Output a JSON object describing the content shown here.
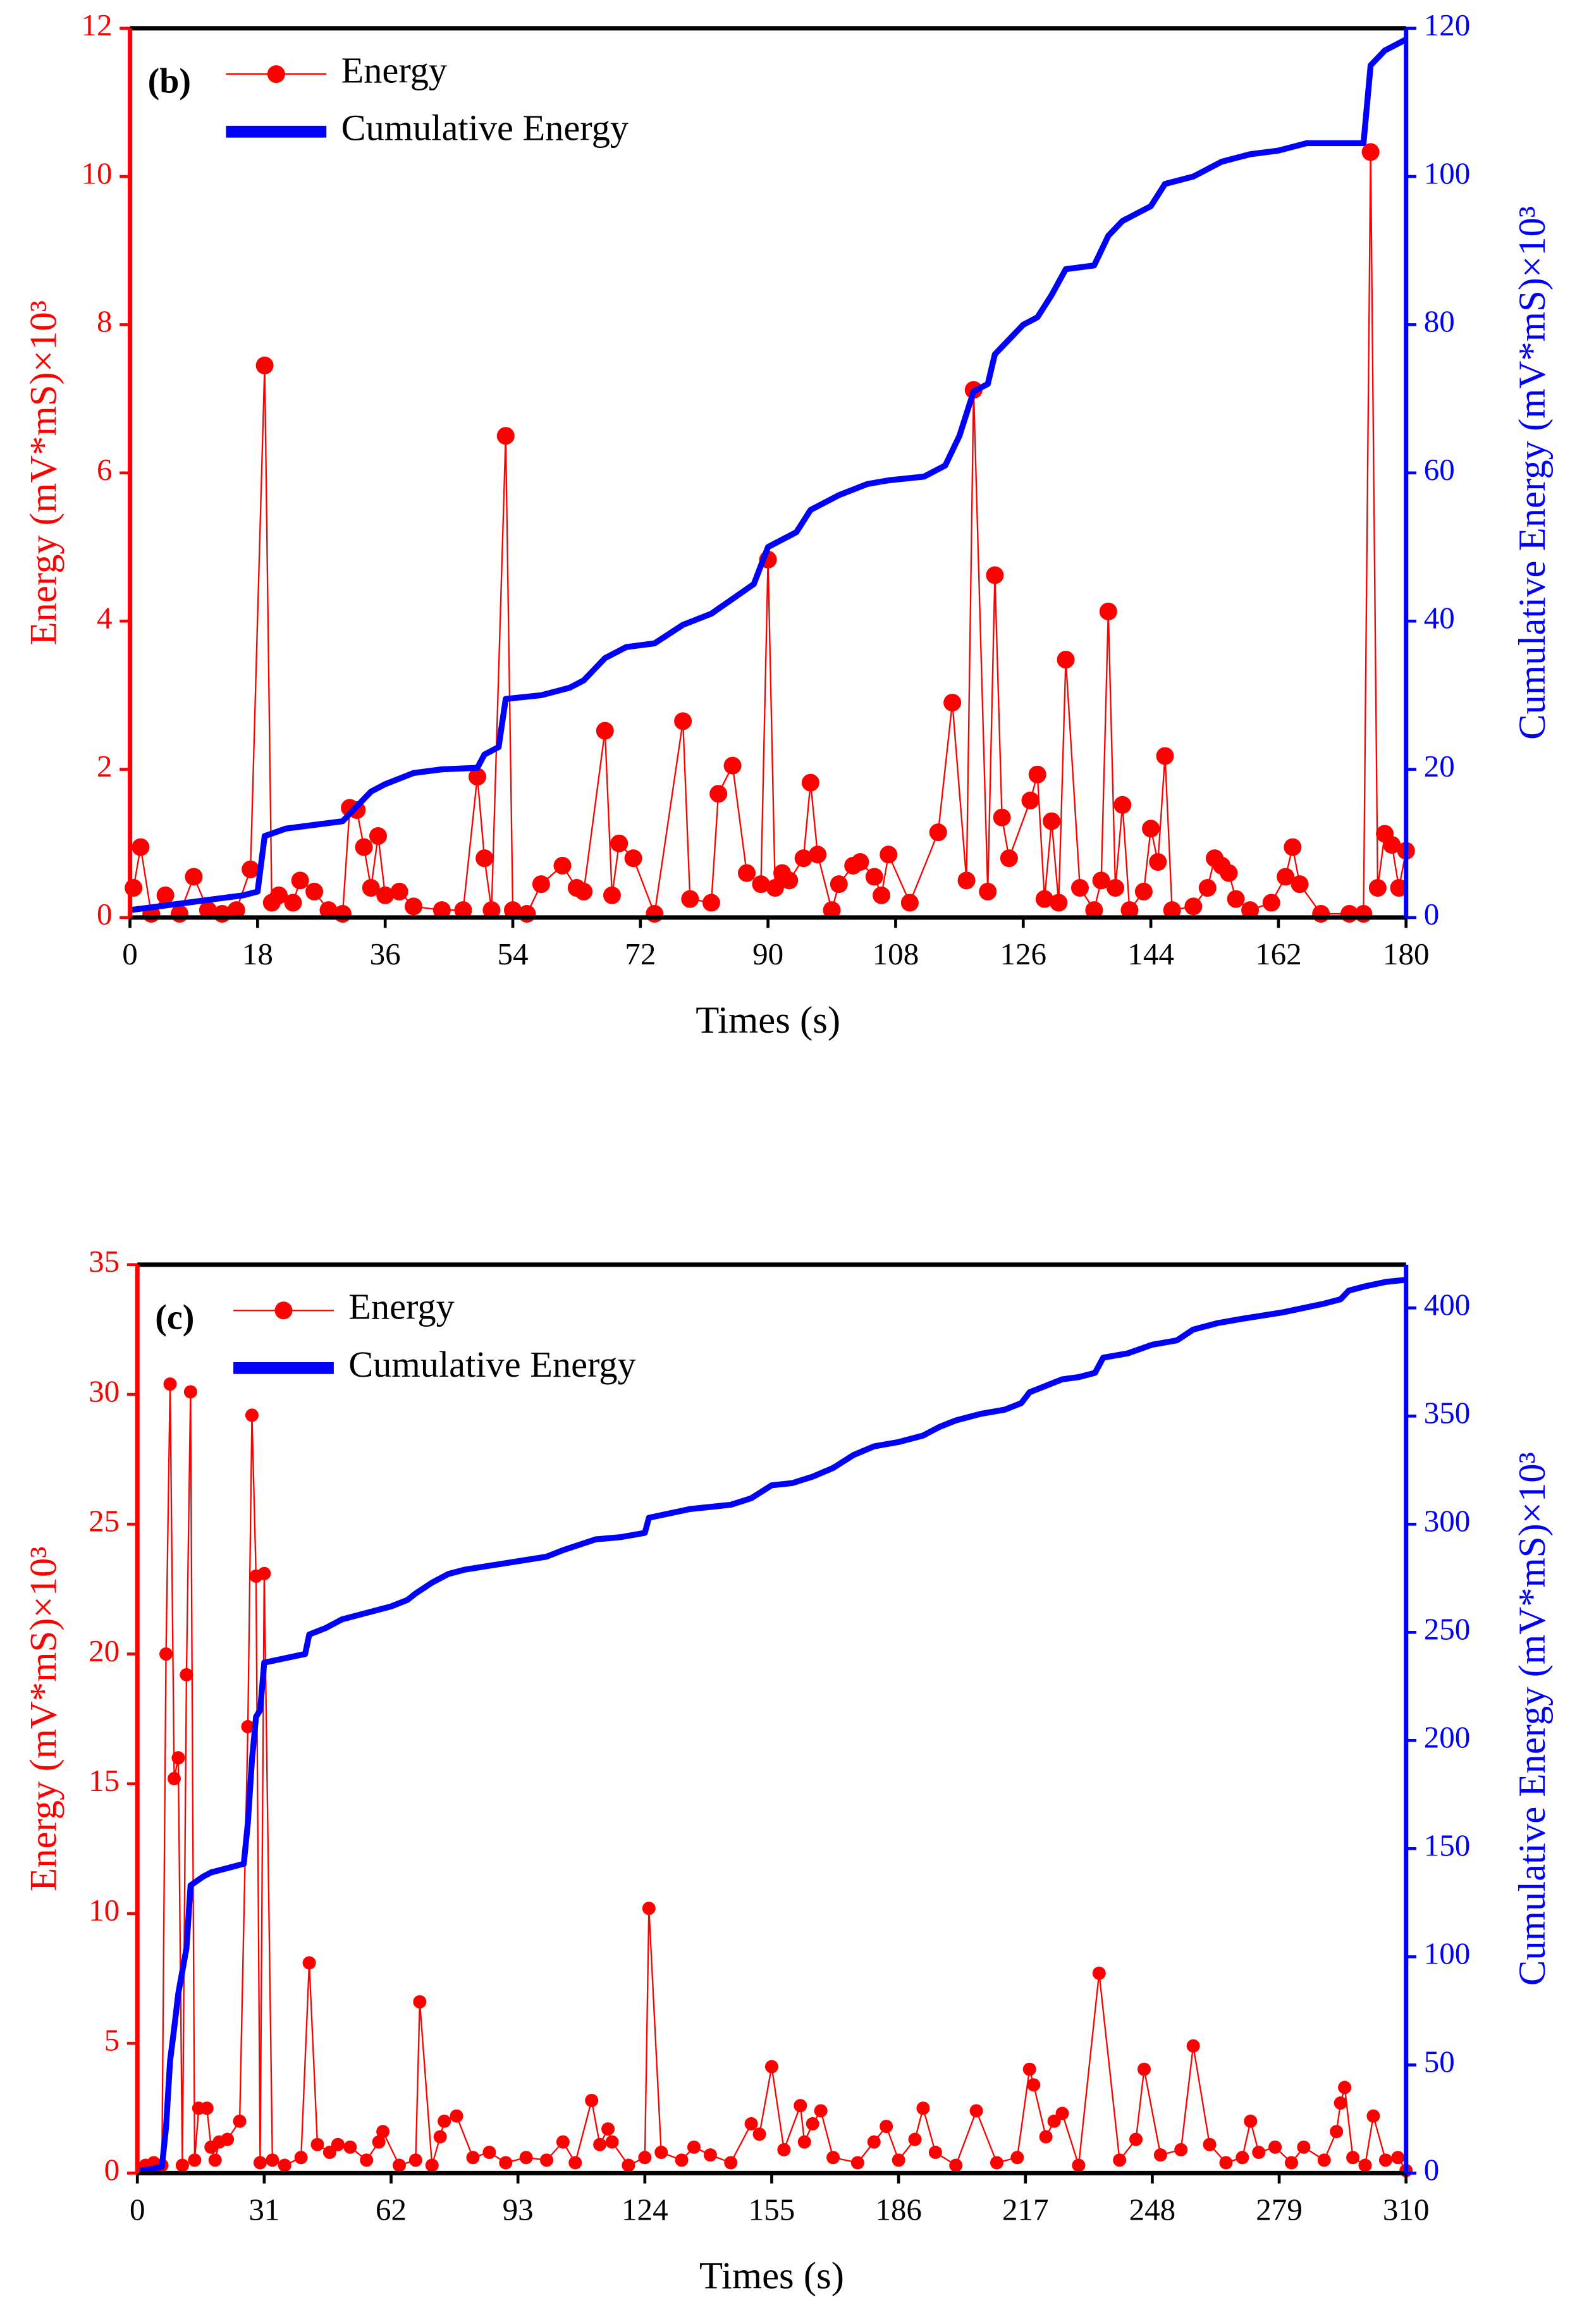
{
  "chart_data": [
    {
      "type": "line",
      "panel_label": "(b)",
      "xlabel": "Times (s)",
      "ylabel": "Energy (mV*mS)×10³",
      "y2label": "Cumulative Energy (mV*mS)×10³",
      "xlim": [
        0,
        180
      ],
      "xticks": [
        0,
        18,
        36,
        54,
        72,
        90,
        108,
        126,
        144,
        162,
        180
      ],
      "ylim": [
        0,
        12
      ],
      "yticks": [
        0,
        2,
        4,
        6,
        8,
        10,
        12
      ],
      "y2lim": [
        0,
        120
      ],
      "y2ticks": [
        0,
        20,
        40,
        60,
        80,
        100,
        120
      ],
      "legend": "upper left",
      "series": [
        {
          "name": "Energy",
          "color": "#ff0000",
          "marker": "circle",
          "axis": "y",
          "x": [
            0.5,
            1.5,
            3,
            5,
            7,
            9,
            11,
            13,
            15,
            17,
            19,
            20,
            21,
            23,
            24,
            26,
            28,
            30,
            31,
            32,
            33,
            34,
            35,
            36,
            38,
            40,
            44,
            47,
            49,
            50,
            51,
            53,
            54,
            56,
            58,
            61,
            63,
            64,
            67,
            68,
            69,
            71,
            74,
            78,
            79,
            82,
            83,
            85,
            87,
            89,
            90,
            91,
            92,
            93,
            95,
            96,
            97,
            99,
            100,
            102,
            103,
            105,
            106,
            107,
            110,
            114,
            116,
            118,
            119,
            121,
            122,
            123,
            124,
            127,
            128,
            129,
            130,
            131,
            132,
            134,
            136,
            137,
            138,
            139,
            140,
            141,
            143,
            144,
            145,
            146,
            147,
            150,
            152,
            153,
            154,
            155,
            156,
            158,
            161,
            163,
            164,
            165,
            168,
            172,
            174,
            175,
            176,
            177,
            178,
            179,
            180
          ],
          "values": [
            0.4,
            0.95,
            0.05,
            0.3,
            0.05,
            0.55,
            0.1,
            0.05,
            0.1,
            0.65,
            7.45,
            0.2,
            0.3,
            0.2,
            0.5,
            0.35,
            0.1,
            0.05,
            1.48,
            1.45,
            0.95,
            0.4,
            1.1,
            0.3,
            0.35,
            0.15,
            0.1,
            0.1,
            1.9,
            0.8,
            0.1,
            6.5,
            0.1,
            0.05,
            0.45,
            0.7,
            0.4,
            0.35,
            2.52,
            0.3,
            1.0,
            0.8,
            0.05,
            2.65,
            0.25,
            0.2,
            1.67,
            2.05,
            0.6,
            0.45,
            4.83,
            0.4,
            0.6,
            0.5,
            0.8,
            1.82,
            0.85,
            0.1,
            0.45,
            0.7,
            0.75,
            0.55,
            0.3,
            0.85,
            0.2,
            1.15,
            2.9,
            0.5,
            7.12,
            0.35,
            4.62,
            1.35,
            0.8,
            1.58,
            1.93,
            0.25,
            1.3,
            0.2,
            3.48,
            0.4,
            0.1,
            0.5,
            4.13,
            0.4,
            1.52,
            0.1,
            0.35,
            1.2,
            0.75,
            2.18,
            0.1,
            0.15,
            0.4,
            0.8,
            0.7,
            0.6,
            0.25,
            0.1,
            0.2,
            0.55,
            0.95,
            0.45,
            0.05,
            0.05,
            0.05,
            10.33,
            0.4,
            1.13,
            0.98,
            0.4,
            0.9
          ]
        },
        {
          "name": "Cumulative Energy",
          "color": "#0000ff",
          "axis": "y2",
          "x": [
            0,
            4,
            8,
            12,
            16,
            18,
            19,
            22,
            26,
            30,
            32,
            34,
            36,
            40,
            44,
            49,
            50,
            52,
            53,
            58,
            62,
            64,
            67,
            70,
            74,
            78,
            82,
            85,
            88,
            90,
            94,
            96,
            100,
            104,
            107,
            112,
            115,
            117,
            119,
            121,
            122,
            124,
            126,
            128,
            130,
            132,
            136,
            138,
            140,
            144,
            146,
            150,
            154,
            158,
            162,
            166,
            174,
            175,
            177,
            180
          ],
          "values": [
            1,
            1.5,
            2,
            2.5,
            3,
            3.5,
            11,
            12,
            12.5,
            13,
            15,
            17,
            18,
            19.5,
            20,
            20.2,
            22,
            23,
            29.5,
            30,
            31,
            32,
            35,
            36.5,
            37,
            39.5,
            41,
            43,
            45,
            50,
            52,
            55,
            57,
            58.5,
            59,
            59.5,
            61,
            65,
            71,
            72,
            76,
            78,
            80,
            81,
            84,
            87.5,
            88,
            92,
            94,
            96,
            99,
            100,
            102,
            103,
            103.5,
            104.5,
            104.5,
            115,
            117,
            118.5
          ]
        }
      ]
    },
    {
      "type": "line",
      "panel_label": "(c)",
      "xlabel": "Times (s)",
      "ylabel": "Energy (mV*mS)×10³",
      "y2label": "Cumulative Energy (mV*mS)×10³",
      "xlim": [
        0,
        310
      ],
      "xticks": [
        0,
        31,
        62,
        93,
        124,
        155,
        186,
        217,
        248,
        279,
        310
      ],
      "ylim": [
        0,
        35
      ],
      "yticks": [
        0,
        5,
        10,
        15,
        20,
        25,
        30,
        35
      ],
      "y2lim": [
        0,
        420
      ],
      "y2ticks": [
        0,
        50,
        100,
        150,
        200,
        250,
        300,
        350,
        400
      ],
      "legend": "upper left",
      "series": [
        {
          "name": "Energy",
          "color": "#ff0000",
          "marker": "circle",
          "axis": "y",
          "x": [
            2,
            4,
            6,
            7,
            8,
            9,
            10,
            11,
            12,
            13,
            14,
            15,
            17,
            18,
            19,
            20,
            22,
            25,
            27,
            28,
            29,
            30,
            31,
            33,
            36,
            40,
            42,
            44,
            47,
            49,
            52,
            56,
            59,
            60,
            64,
            68,
            69,
            72,
            74,
            75,
            78,
            82,
            86,
            90,
            95,
            100,
            104,
            107,
            111,
            113,
            115,
            116,
            120,
            124,
            125,
            128,
            133,
            136,
            140,
            145,
            150,
            152,
            155,
            158,
            162,
            163,
            165,
            167,
            170,
            176,
            180,
            183,
            186,
            190,
            192,
            195,
            200,
            205,
            210,
            215,
            218,
            219,
            222,
            224,
            226,
            230,
            235,
            240,
            244,
            246,
            250,
            255,
            258,
            262,
            266,
            270,
            272,
            274,
            278,
            282,
            285,
            290,
            293,
            294,
            295,
            297,
            300,
            302,
            305,
            308,
            310
          ],
          "values": [
            0.3,
            0.4,
            0.3,
            20,
            30.4,
            15.2,
            16,
            0.3,
            19.2,
            30.1,
            0.5,
            2.5,
            2.5,
            1.0,
            0.5,
            1.2,
            1.3,
            2.0,
            17.2,
            29.2,
            23,
            0.4,
            23.1,
            0.5,
            0.3,
            0.6,
            8.1,
            1.1,
            0.8,
            1.1,
            1.0,
            0.5,
            1.2,
            1.6,
            0.3,
            0.5,
            6.6,
            0.3,
            1.4,
            2.0,
            2.2,
            0.6,
            0.8,
            0.4,
            0.6,
            0.5,
            1.2,
            0.4,
            2.8,
            1.1,
            1.7,
            1.2,
            0.3,
            0.6,
            10.2,
            0.8,
            0.5,
            1.0,
            0.7,
            0.4,
            1.9,
            1.5,
            4.1,
            0.9,
            2.6,
            1.2,
            1.9,
            2.4,
            0.6,
            0.4,
            1.2,
            1.8,
            0.5,
            1.3,
            2.5,
            0.8,
            0.3,
            2.4,
            0.4,
            0.6,
            4.0,
            3.4,
            1.4,
            2.0,
            2.3,
            0.3,
            7.7,
            0.5,
            1.3,
            4.0,
            0.7,
            0.9,
            4.9,
            1.1,
            0.4,
            0.6,
            2.0,
            0.8,
            1.0,
            0.4,
            1.0,
            0.5,
            1.6,
            2.7,
            3.3,
            0.6,
            0.3,
            2.2,
            0.5,
            0.6,
            0.1
          ]
        },
        {
          "name": "Cumulative Energy",
          "color": "#0000ff",
          "axis": "y2",
          "x": [
            0,
            4,
            6,
            7,
            8,
            9,
            10,
            12,
            13,
            16,
            18,
            22,
            26,
            27,
            28,
            29,
            30,
            31,
            36,
            41,
            42,
            46,
            50,
            56,
            62,
            66,
            68,
            72,
            76,
            80,
            90,
            100,
            104,
            112,
            118,
            124,
            125,
            135,
            145,
            150,
            155,
            160,
            165,
            170,
            175,
            180,
            186,
            192,
            196,
            200,
            206,
            212,
            216,
            218,
            222,
            226,
            230,
            234,
            236,
            242,
            248,
            254,
            258,
            264,
            270,
            280,
            290,
            294,
            296,
            300,
            305,
            310
          ],
          "values": [
            1,
            2,
            3,
            21,
            52,
            67,
            83,
            104,
            133,
            137,
            139,
            141,
            143,
            162,
            191,
            211,
            214,
            236,
            238,
            240,
            249,
            252,
            256,
            259,
            262,
            265,
            268,
            273,
            277,
            279,
            282,
            285,
            288,
            293,
            294,
            296,
            303,
            307,
            309,
            312,
            318,
            319,
            322,
            326,
            332,
            336,
            338,
            341,
            345,
            348,
            351,
            353,
            356,
            361,
            364,
            367,
            368,
            370,
            377,
            379,
            383,
            385,
            390,
            393,
            395,
            398,
            402,
            404,
            408,
            410,
            412,
            413
          ]
        }
      ]
    }
  ]
}
